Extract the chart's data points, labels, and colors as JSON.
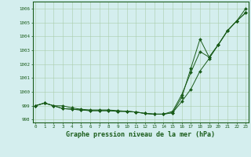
{
  "title": "Graphe pression niveau de la mer (hPa)",
  "xlabel_hours": [
    0,
    1,
    2,
    3,
    4,
    5,
    6,
    7,
    8,
    9,
    10,
    11,
    12,
    13,
    14,
    15,
    16,
    17,
    18,
    19,
    20,
    21,
    22,
    23
  ],
  "line1": [
    999.0,
    999.2,
    999.0,
    998.8,
    998.75,
    998.7,
    998.65,
    998.65,
    998.65,
    998.6,
    998.6,
    998.55,
    998.45,
    998.4,
    998.4,
    998.5,
    999.3,
    1000.2,
    1001.5,
    1002.4,
    1003.4,
    1004.4,
    1005.1,
    1005.7
  ],
  "line2": [
    999.0,
    999.2,
    999.0,
    998.8,
    998.75,
    998.7,
    998.65,
    998.65,
    998.65,
    998.6,
    998.6,
    998.55,
    998.45,
    998.4,
    998.4,
    998.5,
    999.6,
    1001.7,
    1003.8,
    1002.5,
    1003.4,
    1004.4,
    1005.1,
    1005.7
  ],
  "line3": [
    999.0,
    999.2,
    999.0,
    999.0,
    998.85,
    998.75,
    998.7,
    998.7,
    998.7,
    998.65,
    998.6,
    998.55,
    998.45,
    998.4,
    998.4,
    998.6,
    999.8,
    1001.4,
    1002.9,
    1002.5,
    1003.4,
    1004.4,
    1005.1,
    1006.0
  ],
  "ylim": [
    997.8,
    1006.5
  ],
  "yticks": [
    998,
    999,
    1000,
    1001,
    1002,
    1003,
    1004,
    1005,
    1006
  ],
  "line_color": "#1a5c1a",
  "marker_color": "#1a5c1a",
  "bg_color": "#d4eeee",
  "grid_color": "#aaccaa",
  "title_color": "#1a5c1a",
  "title_fontsize": 6.0,
  "tick_fontsize": 4.2,
  "marker_size": 2.0,
  "linewidth": 0.7
}
